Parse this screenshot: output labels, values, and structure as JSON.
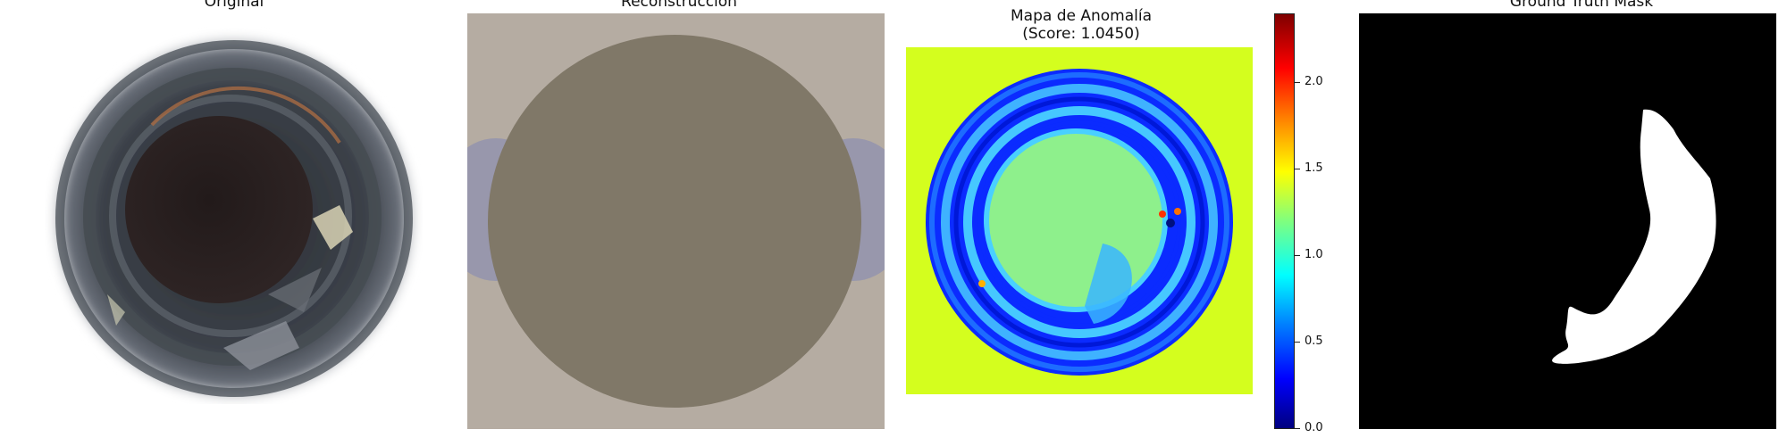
{
  "panels": {
    "original": {
      "title": "Original"
    },
    "reconstruction": {
      "title": "Reconstrucción"
    },
    "anomaly_map": {
      "title_line1": "Mapa de Anomalía",
      "title_line2": "(Score: 1.0450)"
    },
    "ground_truth": {
      "title": "Ground Truth Mask"
    }
  },
  "colorbar": {
    "ticks": [
      "0.0",
      "0.5",
      "1.0",
      "1.5",
      "2.0"
    ],
    "range": [
      0.0,
      2.4
    ],
    "colormap": "jet"
  },
  "colors": {
    "recon_background": "#b5aca2",
    "recon_disc": "#807868",
    "anomaly_background": "#d4fe1e",
    "mask_background": "#000000",
    "mask_region": "#ffffff"
  }
}
